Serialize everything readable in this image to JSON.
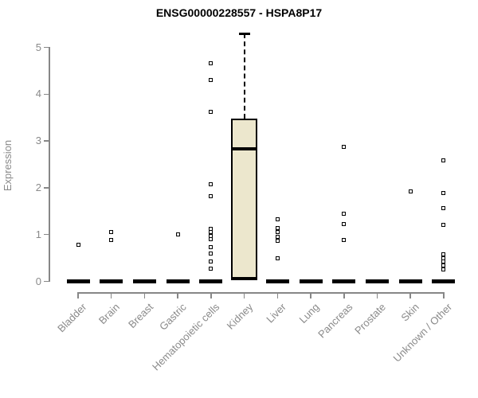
{
  "chart_data": {
    "type": "boxplot",
    "title": "ENSG00000228557 - HSPA8P17",
    "ylabel": "Expression",
    "xlabel": "",
    "ylim": [
      0,
      5.4
    ],
    "yticks": [
      0,
      1,
      2,
      3,
      4,
      5
    ],
    "grid": false,
    "legend": false,
    "box_fill": "#ECE7CD",
    "mark_color": "#000000",
    "axis_color": "#878787",
    "tick_label_color": "#8A8A8A",
    "title_color": "#000000",
    "categories": [
      "Bladder",
      "Brain",
      "Breast",
      "Gastric",
      "Hematopoietic cells",
      "Kidney",
      "Liver",
      "Lung",
      "Pancreas",
      "Prostate",
      "Skin",
      "Unknown / Other"
    ],
    "series": [
      {
        "category": "Bladder",
        "median": 0,
        "outliers": [
          0.78
        ]
      },
      {
        "category": "Brain",
        "median": 0,
        "outliers": [
          1.05,
          0.88
        ]
      },
      {
        "category": "Breast",
        "median": 0,
        "outliers": []
      },
      {
        "category": "Gastric",
        "median": 0,
        "outliers": [
          1.0
        ]
      },
      {
        "category": "Hematopoietic cells",
        "median": 0,
        "outliers": [
          4.67,
          4.3,
          3.62,
          2.08,
          1.82,
          1.13,
          1.05,
          0.97,
          0.9,
          0.73,
          0.6,
          0.43,
          0.28
        ]
      },
      {
        "category": "Kidney",
        "q1": 0.02,
        "median": 2.83,
        "q3": 3.48,
        "whisker_low": 0.02,
        "whisker_high": 5.3,
        "outliers": []
      },
      {
        "category": "Liver",
        "median": 0,
        "outliers": [
          1.32,
          1.14,
          1.05,
          0.96,
          0.87,
          0.5
        ]
      },
      {
        "category": "Lung",
        "median": 0,
        "outliers": []
      },
      {
        "category": "Pancreas",
        "median": 0,
        "outliers": [
          2.87,
          1.44,
          1.22,
          0.88
        ]
      },
      {
        "category": "Prostate",
        "median": 0,
        "outliers": []
      },
      {
        "category": "Skin",
        "median": 0,
        "outliers": [
          1.93
        ]
      },
      {
        "category": "Unknown / Other",
        "median": 0,
        "outliers": [
          2.59,
          1.89,
          1.57,
          1.21,
          0.58,
          0.5,
          0.42,
          0.34,
          0.26
        ]
      }
    ]
  }
}
